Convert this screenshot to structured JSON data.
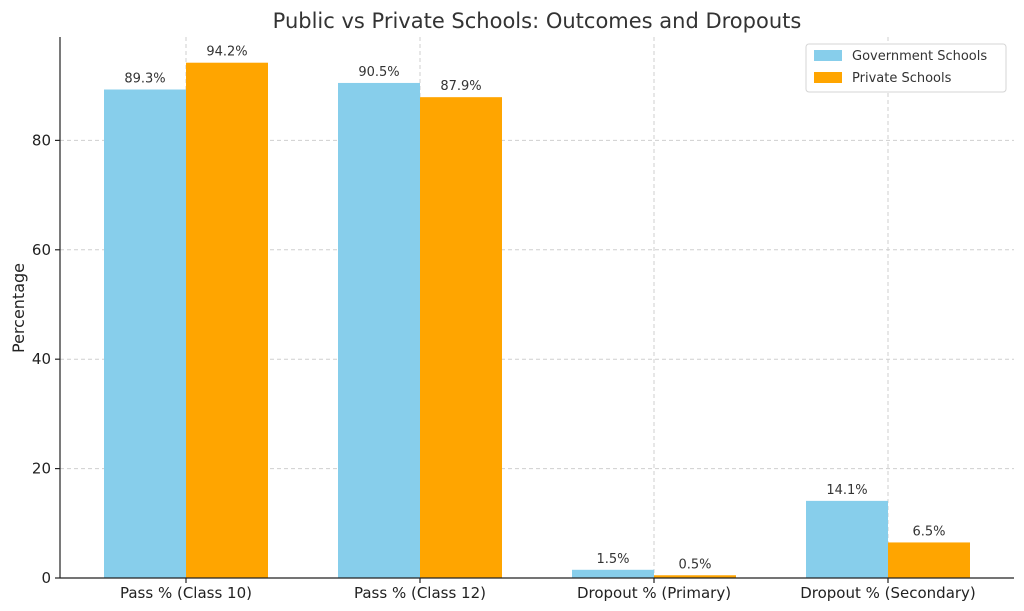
{
  "chart_data": {
    "type": "bar",
    "title": "Public vs Private Schools: Outcomes and Dropouts",
    "xlabel": "",
    "ylabel": "Percentage",
    "categories": [
      "Pass % (Class 10)",
      "Pass % (Class 12)",
      "Dropout % (Primary)",
      "Dropout % (Secondary)"
    ],
    "series": [
      {
        "name": "Government Schools",
        "color": "#87CEEB",
        "values": [
          89.3,
          90.5,
          1.5,
          14.1
        ],
        "labels": [
          "89.3%",
          "90.5%",
          "1.5%",
          "14.1%"
        ]
      },
      {
        "name": "Private Schools",
        "color": "#FFA500",
        "values": [
          94.2,
          87.9,
          0.5,
          6.5
        ],
        "labels": [
          "94.2%",
          "87.9%",
          "0.5%",
          "6.5%"
        ]
      }
    ],
    "ylim": [
      0,
      98.9
    ],
    "yticks": [
      0,
      20,
      40,
      60,
      80
    ],
    "grid": true,
    "legend_position": "top-right"
  }
}
